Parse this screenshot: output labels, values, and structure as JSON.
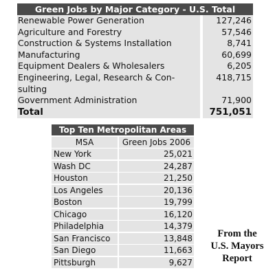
{
  "table1": {
    "title": "Green Jobs by Major Category - U.S. Total",
    "rows": [
      [
        "Renewable Power Generation",
        "127,246"
      ],
      [
        "Agriculture and Forestry",
        "57,546"
      ],
      [
        "Construction & Systems Installation",
        "8,741"
      ],
      [
        "Manufacturing",
        "60,699"
      ],
      [
        "Equipment Dealers & Wholesalers",
        "6,205"
      ],
      [
        "Engineering, Legal, Research &  Con-\nsulting",
        "418,715"
      ],
      [
        "Government Administration",
        "71,900"
      ]
    ],
    "total": [
      "Total",
      "751,051"
    ]
  },
  "table2": {
    "title": "Top Ten Metropolitan Areas",
    "columns": [
      "MSA",
      "Green Jobs 2006"
    ],
    "rows": [
      [
        "New York",
        "25,021"
      ],
      [
        "Wash DC",
        "24,287"
      ],
      [
        "Houston",
        "21,250"
      ],
      [
        "Los Angeles",
        "20,136"
      ],
      [
        "Boston",
        "19,799"
      ],
      [
        "Chicago",
        "16,120"
      ],
      [
        "Philadelphia",
        "14,379"
      ],
      [
        "San Francisco",
        "13,848"
      ],
      [
        "San Diego",
        "11,663"
      ],
      [
        "Pittsburgh",
        "9,627"
      ]
    ]
  },
  "note": [
    "From the",
    "U.S. Mayors",
    "Report"
  ]
}
